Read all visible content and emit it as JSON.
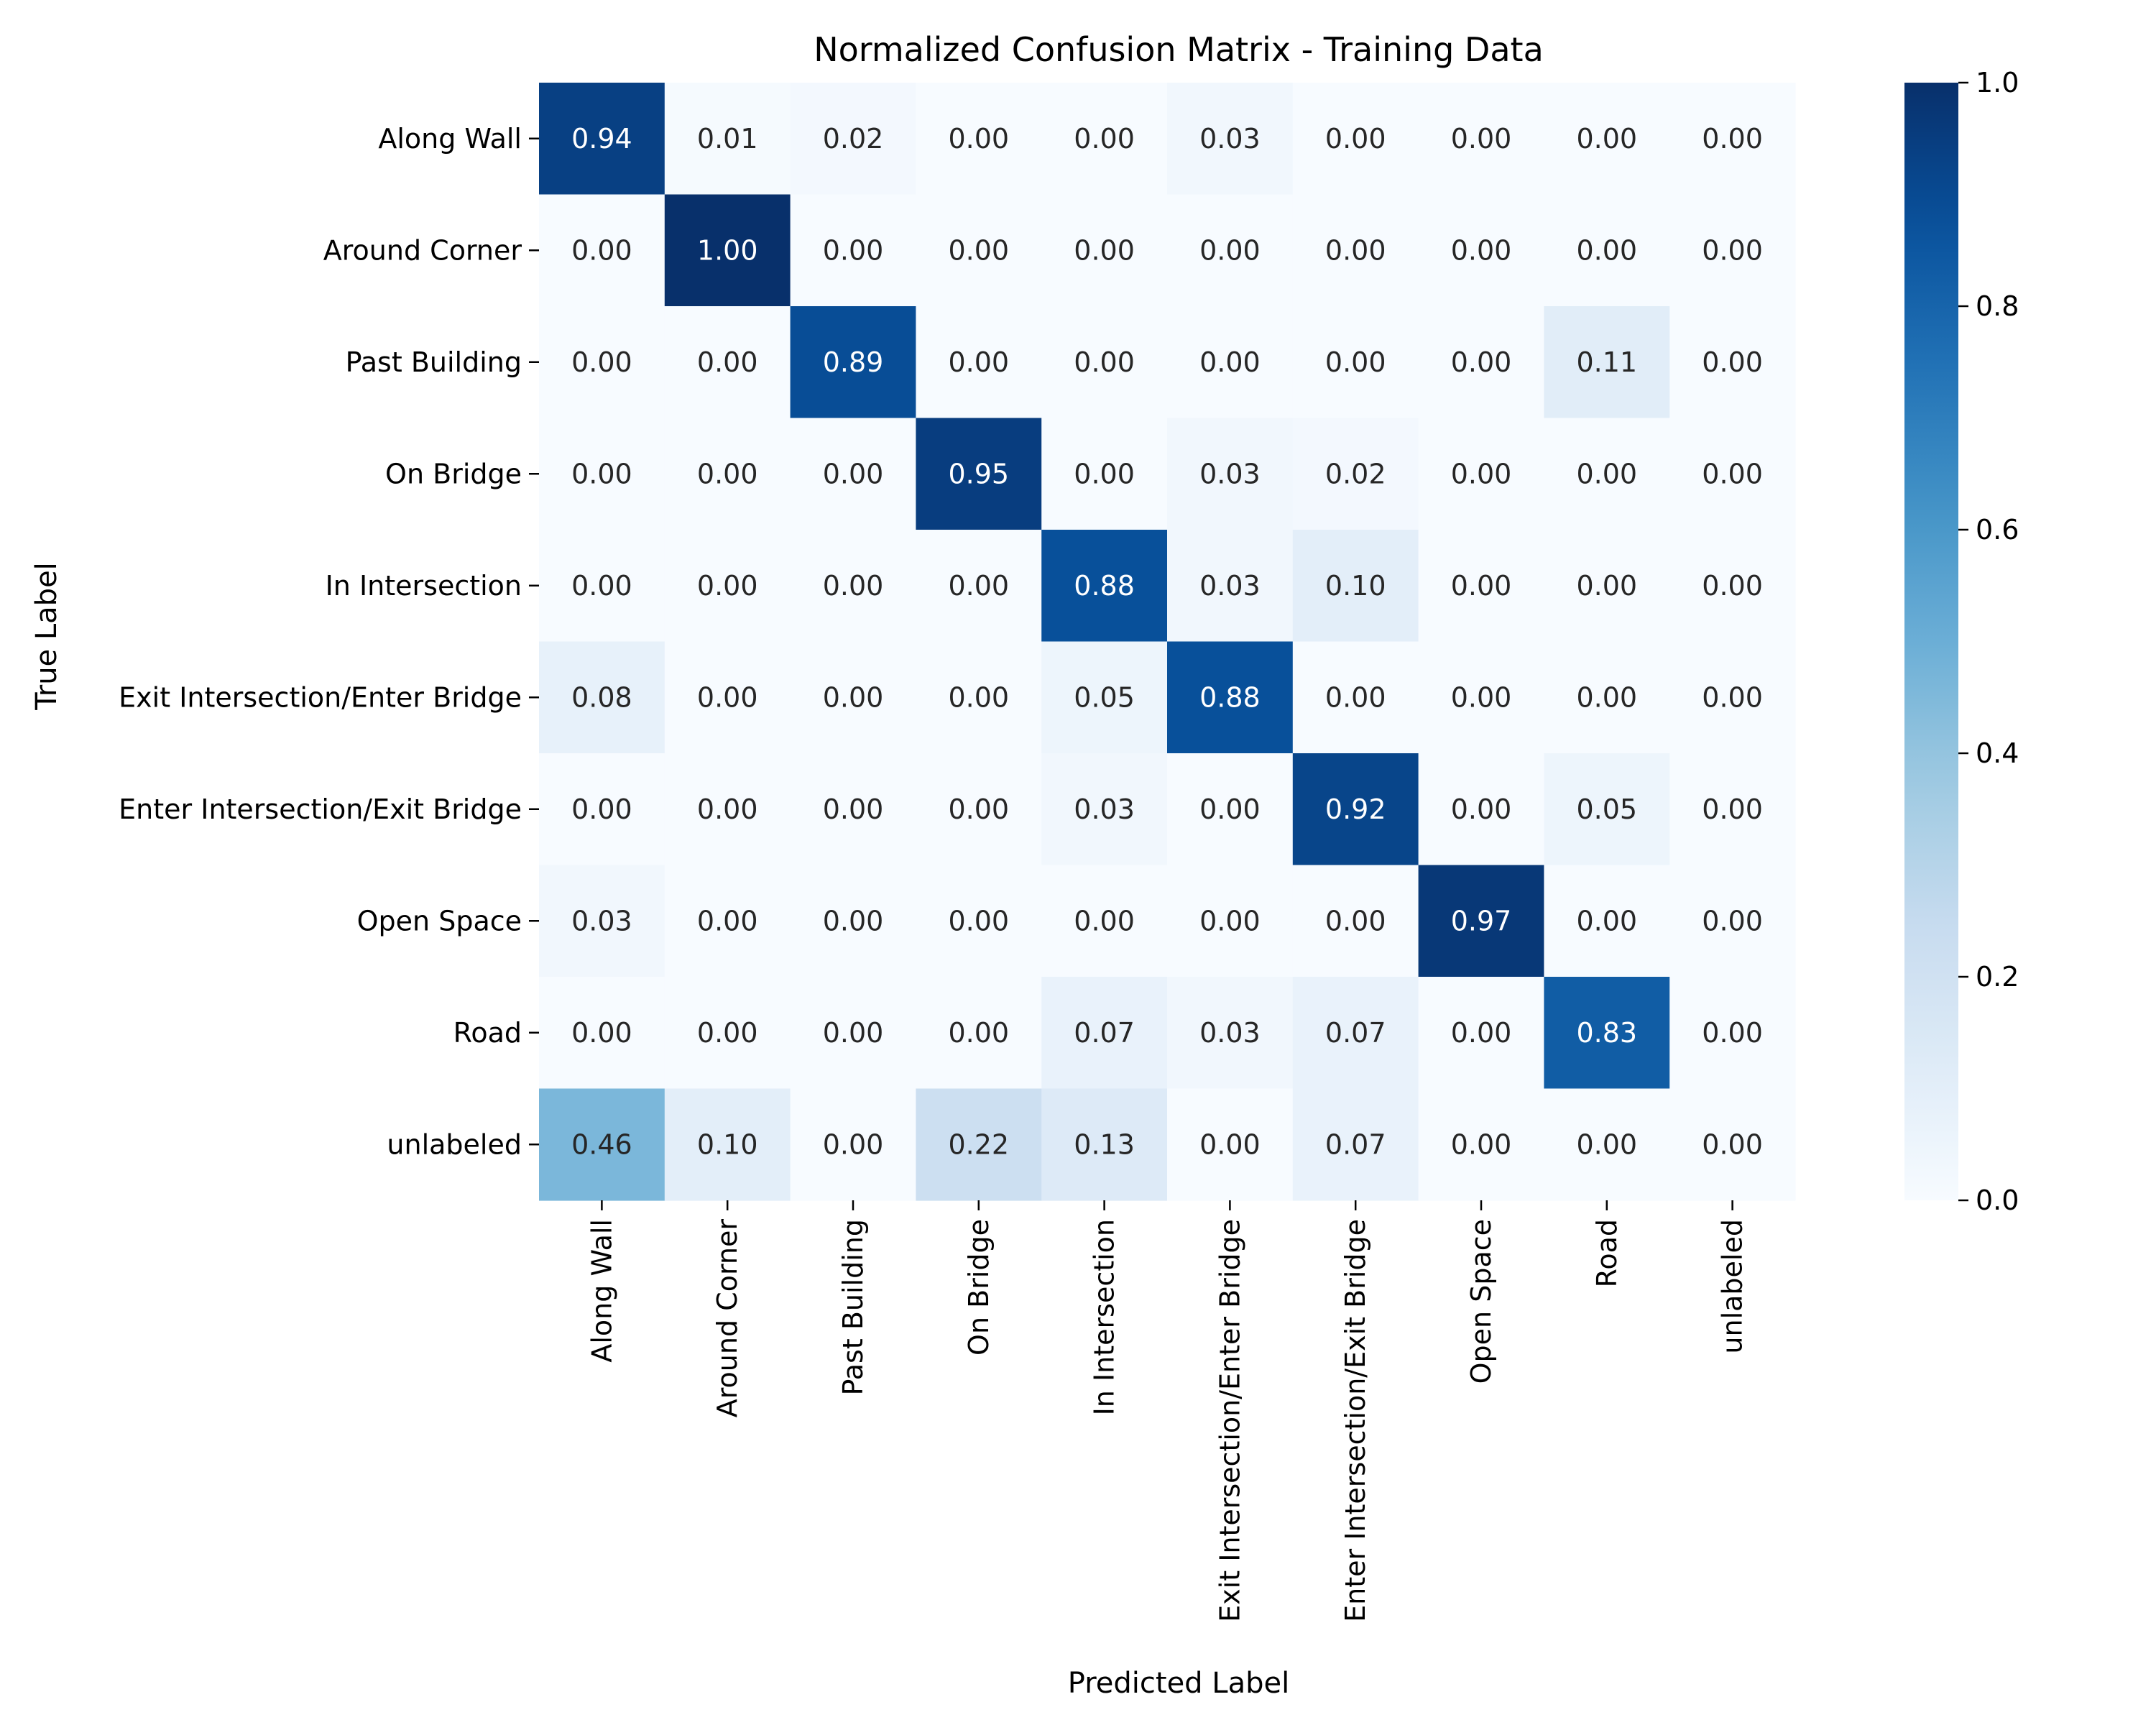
{
  "chart_data": {
    "type": "heatmap",
    "title": "Normalized Confusion Matrix - Training Data",
    "xlabel": "Predicted Label",
    "ylabel": "True Label",
    "row_labels": [
      "Along Wall",
      "Around Corner",
      "Past Building",
      "On Bridge",
      "In Intersection",
      "Exit Intersection/Enter Bridge",
      "Enter Intersection/Exit Bridge",
      "Open Space",
      "Road",
      "unlabeled"
    ],
    "col_labels": [
      "Along Wall",
      "Around Corner",
      "Past Building",
      "On Bridge",
      "In Intersection",
      "Exit Intersection/Enter Bridge",
      "Enter Intersection/Exit Bridge",
      "Open Space",
      "Road",
      "unlabeled"
    ],
    "values": [
      [
        0.94,
        0.01,
        0.02,
        0.0,
        0.0,
        0.03,
        0.0,
        0.0,
        0.0,
        0.0
      ],
      [
        0.0,
        1.0,
        0.0,
        0.0,
        0.0,
        0.0,
        0.0,
        0.0,
        0.0,
        0.0
      ],
      [
        0.0,
        0.0,
        0.89,
        0.0,
        0.0,
        0.0,
        0.0,
        0.0,
        0.11,
        0.0
      ],
      [
        0.0,
        0.0,
        0.0,
        0.95,
        0.0,
        0.03,
        0.02,
        0.0,
        0.0,
        0.0
      ],
      [
        0.0,
        0.0,
        0.0,
        0.0,
        0.88,
        0.03,
        0.1,
        0.0,
        0.0,
        0.0
      ],
      [
        0.08,
        0.0,
        0.0,
        0.0,
        0.05,
        0.88,
        0.0,
        0.0,
        0.0,
        0.0
      ],
      [
        0.0,
        0.0,
        0.0,
        0.0,
        0.03,
        0.0,
        0.92,
        0.0,
        0.05,
        0.0
      ],
      [
        0.03,
        0.0,
        0.0,
        0.0,
        0.0,
        0.0,
        0.0,
        0.97,
        0.0,
        0.0
      ],
      [
        0.0,
        0.0,
        0.0,
        0.0,
        0.07,
        0.03,
        0.07,
        0.0,
        0.83,
        0.0
      ],
      [
        0.46,
        0.1,
        0.0,
        0.22,
        0.13,
        0.0,
        0.07,
        0.0,
        0.0,
        0.0
      ]
    ],
    "value_format": "0.00",
    "colorbar": {
      "range": [
        0.0,
        1.0
      ],
      "ticks": [
        0.0,
        0.2,
        0.4,
        0.6,
        0.8,
        1.0
      ],
      "tick_labels": [
        "0.0",
        "0.2",
        "0.4",
        "0.6",
        "0.8",
        "1.0"
      ],
      "colormap": "Blues",
      "color_low": "#f7fbff",
      "color_high": "#08306b"
    },
    "grid": false
  }
}
